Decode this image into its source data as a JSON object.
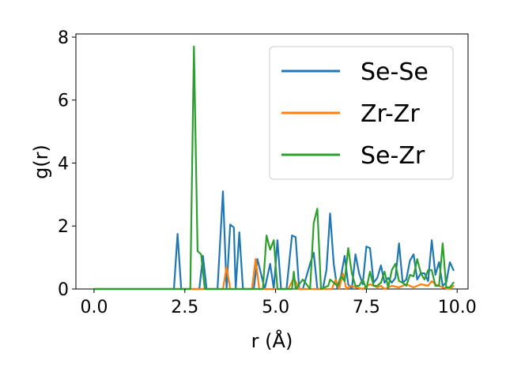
{
  "chart_data": {
    "type": "line",
    "title": "",
    "xlabel": "r (Å)",
    "ylabel": "g(r)",
    "xlim": [
      -0.5,
      10.3
    ],
    "ylim": [
      0,
      8.1
    ],
    "xticks": [
      0.0,
      2.5,
      5.0,
      7.5,
      10.0
    ],
    "xtick_labels": [
      "0.0",
      "2.5",
      "5.0",
      "7.5",
      "10.0"
    ],
    "yticks": [
      0,
      2,
      4,
      6,
      8
    ],
    "ytick_labels": [
      "0",
      "2",
      "4",
      "6",
      "8"
    ],
    "grid": false,
    "legend_position": "top-right",
    "series": [
      {
        "name": "Se-Se",
        "color": "#1f77b4",
        "x": [
          0.0,
          2.2,
          2.3,
          2.4,
          2.9,
          3.0,
          3.1,
          3.4,
          3.55,
          3.65,
          3.75,
          3.85,
          3.9,
          4.0,
          4.1,
          4.4,
          4.5,
          4.7,
          4.85,
          4.95,
          5.05,
          5.15,
          5.3,
          5.45,
          5.55,
          5.65,
          5.75,
          5.95,
          6.05,
          6.15,
          6.3,
          6.4,
          6.5,
          6.6,
          6.7,
          6.8,
          6.9,
          7.0,
          7.1,
          7.2,
          7.3,
          7.4,
          7.5,
          7.6,
          7.7,
          7.8,
          7.9,
          8.0,
          8.1,
          8.2,
          8.3,
          8.4,
          8.5,
          8.6,
          8.7,
          8.8,
          8.9,
          9.0,
          9.1,
          9.2,
          9.3,
          9.4,
          9.5,
          9.6,
          9.7,
          9.8,
          9.9
        ],
        "y": [
          0.0,
          0.0,
          1.75,
          0.0,
          0.0,
          1.05,
          0.0,
          0.0,
          3.1,
          0.0,
          2.05,
          1.95,
          0.0,
          1.8,
          0.0,
          0.0,
          0.95,
          0.0,
          0.8,
          0.0,
          1.55,
          0.0,
          0.0,
          1.7,
          1.65,
          0.0,
          0.0,
          0.8,
          1.15,
          0.0,
          0.0,
          0.6,
          2.4,
          0.8,
          0.0,
          0.4,
          1.05,
          0.15,
          0.0,
          1.1,
          0.5,
          0.15,
          1.35,
          1.3,
          0.2,
          0.35,
          0.75,
          0.2,
          0.35,
          0.2,
          0.35,
          1.45,
          0.2,
          0.3,
          0.9,
          1.1,
          0.3,
          0.5,
          0.5,
          0.25,
          1.55,
          0.45,
          0.85,
          0.1,
          0.2,
          0.85,
          0.6
        ]
      },
      {
        "name": "Zr-Zr",
        "color": "#ff7f0e",
        "x": [
          0.0,
          3.55,
          3.65,
          3.75,
          4.35,
          4.45,
          4.55,
          5.35,
          5.5,
          5.65,
          6.55,
          6.65,
          6.75,
          6.85,
          6.95,
          7.05,
          7.4,
          7.6,
          7.8,
          7.9,
          8.0,
          8.2,
          8.4,
          8.6,
          8.8,
          9.0,
          9.2,
          9.3,
          9.4,
          9.6,
          9.8,
          9.9
        ],
        "y": [
          0.0,
          0.0,
          0.7,
          0.0,
          0.0,
          0.95,
          0.0,
          0.0,
          0.35,
          0.0,
          0.0,
          0.3,
          0.0,
          0.5,
          0.0,
          0.1,
          0.0,
          0.15,
          0.05,
          0.1,
          0.0,
          0.1,
          0.05,
          0.15,
          0.05,
          0.15,
          0.1,
          0.25,
          0.15,
          0.05,
          0.0,
          0.1
        ]
      },
      {
        "name": "Se-Zr",
        "color": "#2ca02c",
        "x": [
          0.0,
          2.55,
          2.65,
          2.75,
          2.85,
          2.95,
          3.05,
          3.15,
          4.65,
          4.75,
          4.85,
          4.95,
          5.05,
          5.45,
          5.5,
          5.55,
          5.75,
          5.95,
          6.05,
          6.15,
          6.25,
          6.45,
          6.5,
          6.7,
          6.8,
          6.9,
          7.0,
          7.1,
          7.2,
          7.3,
          7.4,
          7.5,
          7.6,
          7.7,
          7.8,
          7.9,
          8.0,
          8.1,
          8.2,
          8.3,
          8.4,
          8.5,
          8.6,
          8.7,
          8.8,
          8.9,
          9.0,
          9.1,
          9.2,
          9.3,
          9.4,
          9.5,
          9.6,
          9.7,
          9.8,
          9.9
        ],
        "y": [
          0.0,
          0.0,
          0.0,
          7.7,
          1.2,
          1.1,
          0.0,
          0.0,
          0.0,
          1.7,
          1.25,
          1.55,
          0.0,
          0.0,
          0.55,
          0.0,
          0.3,
          0.0,
          2.1,
          2.55,
          0.0,
          0.1,
          0.3,
          0.1,
          0.4,
          0.25,
          1.3,
          0.5,
          0.1,
          0.1,
          0.3,
          0.0,
          0.55,
          0.1,
          0.1,
          0.2,
          0.55,
          0.05,
          0.6,
          0.8,
          0.25,
          0.2,
          0.1,
          0.45,
          0.4,
          0.95,
          0.5,
          0.3,
          0.6,
          0.6,
          0.1,
          0.1,
          1.45,
          0.05,
          0.05,
          0.2
        ]
      }
    ]
  }
}
